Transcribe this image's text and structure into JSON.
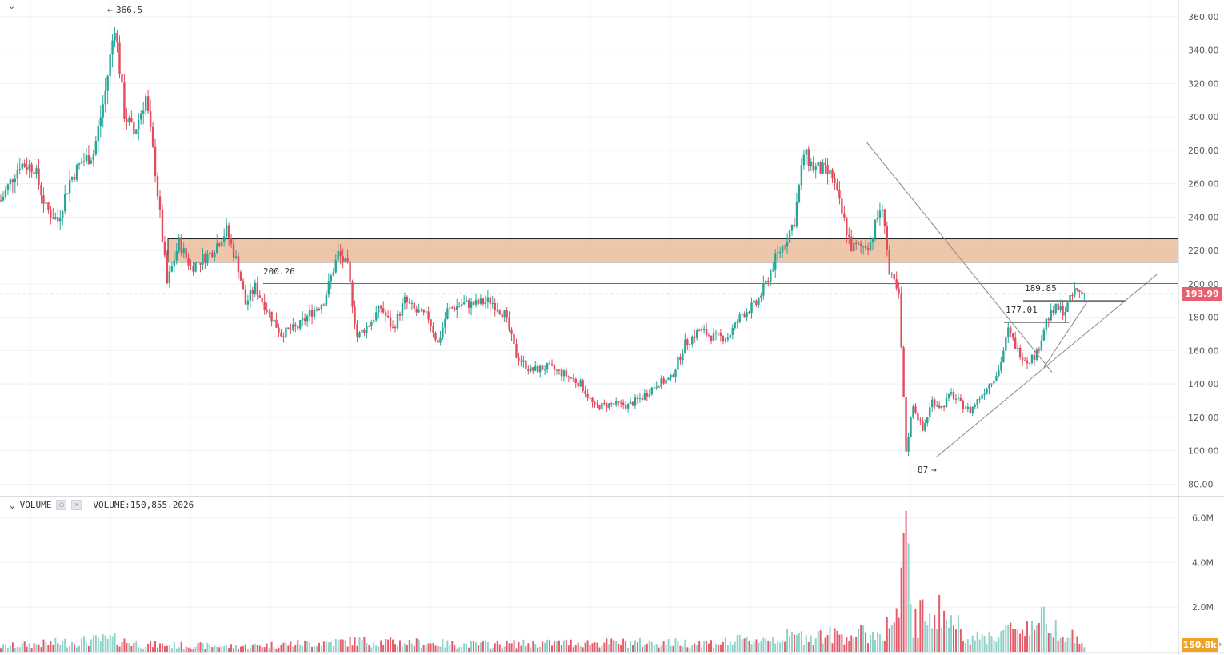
{
  "chart_data": {
    "type": "candlestick",
    "price_axis": {
      "ticks": [
        "360.00",
        "340.00",
        "320.00",
        "300.00",
        "280.00",
        "260.00",
        "240.00",
        "220.00",
        "200.00",
        "180.00",
        "160.00",
        "140.00",
        "120.00",
        "100.00",
        "80.00"
      ],
      "tick_values": [
        360,
        340,
        320,
        300,
        280,
        260,
        240,
        220,
        200,
        180,
        160,
        140,
        120,
        100,
        80
      ],
      "range": [
        73,
        370
      ]
    },
    "volume_axis": {
      "ticks": [
        "6.0M",
        "4.0M",
        "2.0M"
      ],
      "tick_values": [
        6000000,
        4000000,
        2000000
      ],
      "range": [
        0,
        6200000
      ]
    },
    "grid": true,
    "last_price_label": "193.99",
    "last_price": 193.99,
    "last_volume_label": "150.8k",
    "volume_indicator": {
      "name": "VOLUME",
      "value_text": "VOLUME:150,855.2026"
    },
    "annotations": {
      "high": {
        "label": "366.5",
        "value": 366.5
      },
      "low": {
        "label": "87",
        "value": 87
      },
      "level_200": {
        "label": "200.26",
        "value": 200.26
      },
      "level_190": {
        "label": "189.85",
        "value": 189.85
      },
      "level_177": {
        "label": "177.01",
        "value": 177.01
      }
    },
    "zone": {
      "low": 213,
      "high": 227,
      "color": "#e8b48e"
    },
    "colors": {
      "up": "#26a69a",
      "down": "#e04c5c",
      "up_volume": "#8fd2ca",
      "down_volume": "#e65b6a"
    },
    "candle_path": [
      {
        "i": 0,
        "p": 250
      },
      {
        "i": 8,
        "p": 272
      },
      {
        "i": 14,
        "p": 270
      },
      {
        "i": 19,
        "p": 245
      },
      {
        "i": 24,
        "p": 238
      },
      {
        "i": 29,
        "p": 262
      },
      {
        "i": 34,
        "p": 273
      },
      {
        "i": 39,
        "p": 278
      },
      {
        "i": 44,
        "p": 315
      },
      {
        "i": 48,
        "p": 356
      },
      {
        "i": 52,
        "p": 302
      },
      {
        "i": 56,
        "p": 290
      },
      {
        "i": 61,
        "p": 312
      },
      {
        "i": 65,
        "p": 268
      },
      {
        "i": 70,
        "p": 200
      },
      {
        "i": 75,
        "p": 225
      },
      {
        "i": 80,
        "p": 210
      },
      {
        "i": 88,
        "p": 218
      },
      {
        "i": 95,
        "p": 232
      },
      {
        "i": 100,
        "p": 210
      },
      {
        "i": 103,
        "p": 188
      },
      {
        "i": 107,
        "p": 198
      },
      {
        "i": 112,
        "p": 185
      },
      {
        "i": 118,
        "p": 170
      },
      {
        "i": 125,
        "p": 174
      },
      {
        "i": 130,
        "p": 182
      },
      {
        "i": 136,
        "p": 190
      },
      {
        "i": 142,
        "p": 218
      },
      {
        "i": 146,
        "p": 210
      },
      {
        "i": 150,
        "p": 168
      },
      {
        "i": 155,
        "p": 176
      },
      {
        "i": 160,
        "p": 186
      },
      {
        "i": 165,
        "p": 173
      },
      {
        "i": 170,
        "p": 190
      },
      {
        "i": 175,
        "p": 183
      },
      {
        "i": 180,
        "p": 180
      },
      {
        "i": 184,
        "p": 164
      },
      {
        "i": 188,
        "p": 184
      },
      {
        "i": 194,
        "p": 188
      },
      {
        "i": 200,
        "p": 188
      },
      {
        "i": 206,
        "p": 190
      },
      {
        "i": 212,
        "p": 182
      },
      {
        "i": 217,
        "p": 157
      },
      {
        "i": 223,
        "p": 148
      },
      {
        "i": 230,
        "p": 150
      },
      {
        "i": 237,
        "p": 146
      },
      {
        "i": 244,
        "p": 140
      },
      {
        "i": 250,
        "p": 126
      },
      {
        "i": 257,
        "p": 128
      },
      {
        "i": 264,
        "p": 127
      },
      {
        "i": 270,
        "p": 132
      },
      {
        "i": 276,
        "p": 140
      },
      {
        "i": 282,
        "p": 143
      },
      {
        "i": 288,
        "p": 164
      },
      {
        "i": 294,
        "p": 172
      },
      {
        "i": 300,
        "p": 168
      },
      {
        "i": 306,
        "p": 168
      },
      {
        "i": 312,
        "p": 182
      },
      {
        "i": 318,
        "p": 188
      },
      {
        "i": 322,
        "p": 200
      },
      {
        "i": 326,
        "p": 215
      },
      {
        "i": 330,
        "p": 225
      },
      {
        "i": 334,
        "p": 238
      },
      {
        "i": 338,
        "p": 278
      },
      {
        "i": 342,
        "p": 270
      },
      {
        "i": 346,
        "p": 268
      },
      {
        "i": 350,
        "p": 264
      },
      {
        "i": 354,
        "p": 242
      },
      {
        "i": 358,
        "p": 222
      },
      {
        "i": 362,
        "p": 222
      },
      {
        "i": 366,
        "p": 225
      },
      {
        "i": 370,
        "p": 245
      },
      {
        "i": 372,
        "p": 238
      },
      {
        "i": 374,
        "p": 205
      },
      {
        "i": 376,
        "p": 200
      },
      {
        "i": 378,
        "p": 192
      },
      {
        "i": 381,
        "p": 100
      },
      {
        "i": 384,
        "p": 128
      },
      {
        "i": 388,
        "p": 112
      },
      {
        "i": 392,
        "p": 130
      },
      {
        "i": 396,
        "p": 126
      },
      {
        "i": 400,
        "p": 134
      },
      {
        "i": 404,
        "p": 128
      },
      {
        "i": 408,
        "p": 124
      },
      {
        "i": 412,
        "p": 132
      },
      {
        "i": 416,
        "p": 140
      },
      {
        "i": 420,
        "p": 148
      },
      {
        "i": 424,
        "p": 172
      },
      {
        "i": 428,
        "p": 160
      },
      {
        "i": 432,
        "p": 154
      },
      {
        "i": 436,
        "p": 158
      },
      {
        "i": 440,
        "p": 178
      },
      {
        "i": 444,
        "p": 185
      },
      {
        "i": 448,
        "p": 184
      },
      {
        "i": 452,
        "p": 196
      },
      {
        "i": 456,
        "p": 194
      }
    ],
    "volume_path": [
      {
        "i": 0,
        "v": 300000
      },
      {
        "i": 47,
        "v": 700000
      },
      {
        "i": 60,
        "v": 400000
      },
      {
        "i": 100,
        "v": 300000
      },
      {
        "i": 150,
        "v": 600000
      },
      {
        "i": 200,
        "v": 400000
      },
      {
        "i": 240,
        "v": 500000
      },
      {
        "i": 300,
        "v": 500000
      },
      {
        "i": 340,
        "v": 900000
      },
      {
        "i": 370,
        "v": 1000000
      },
      {
        "i": 378,
        "v": 2000000
      },
      {
        "i": 381,
        "v": 6000000
      },
      {
        "i": 384,
        "v": 1500000
      },
      {
        "i": 392,
        "v": 2500000
      },
      {
        "i": 410,
        "v": 700000
      },
      {
        "i": 425,
        "v": 1200000
      },
      {
        "i": 440,
        "v": 1800000
      },
      {
        "i": 456,
        "v": 400000
      }
    ]
  }
}
